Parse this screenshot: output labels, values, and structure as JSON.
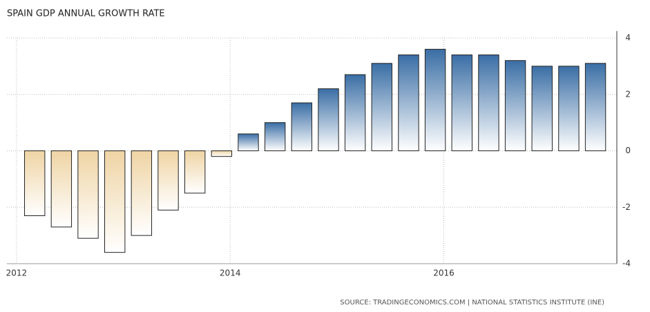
{
  "chart_data": {
    "type": "bar",
    "title": "SPAIN GDP ANNUAL GROWTH RATE",
    "source": "SOURCE: TRADINGECONOMICS.COM | NATIONAL STATISTICS INSTITUTE (INE)",
    "x": [
      2012.17,
      2012.42,
      2012.67,
      2012.92,
      2013.17,
      2013.42,
      2013.67,
      2013.92,
      2014.17,
      2014.42,
      2014.67,
      2014.92,
      2015.17,
      2015.42,
      2015.67,
      2015.92,
      2016.17,
      2016.42,
      2016.67,
      2016.92,
      2017.17,
      2017.42
    ],
    "values": [
      -2.3,
      -2.7,
      -3.1,
      -3.6,
      -3.0,
      -2.1,
      -1.5,
      -0.2,
      0.6,
      1.0,
      1.7,
      2.2,
      2.7,
      3.1,
      3.4,
      3.6,
      3.4,
      3.4,
      3.2,
      3.0,
      3.0,
      3.1
    ],
    "positive_color": "#3a6ea5",
    "negative_color": "#efd4a4",
    "xlim": [
      2011.91,
      2017.62
    ],
    "xticks": [
      2012,
      2014,
      2016
    ],
    "ylim": [
      -4,
      4
    ],
    "yticks": [
      -4,
      -2,
      0,
      2,
      4
    ],
    "grid": true
  }
}
